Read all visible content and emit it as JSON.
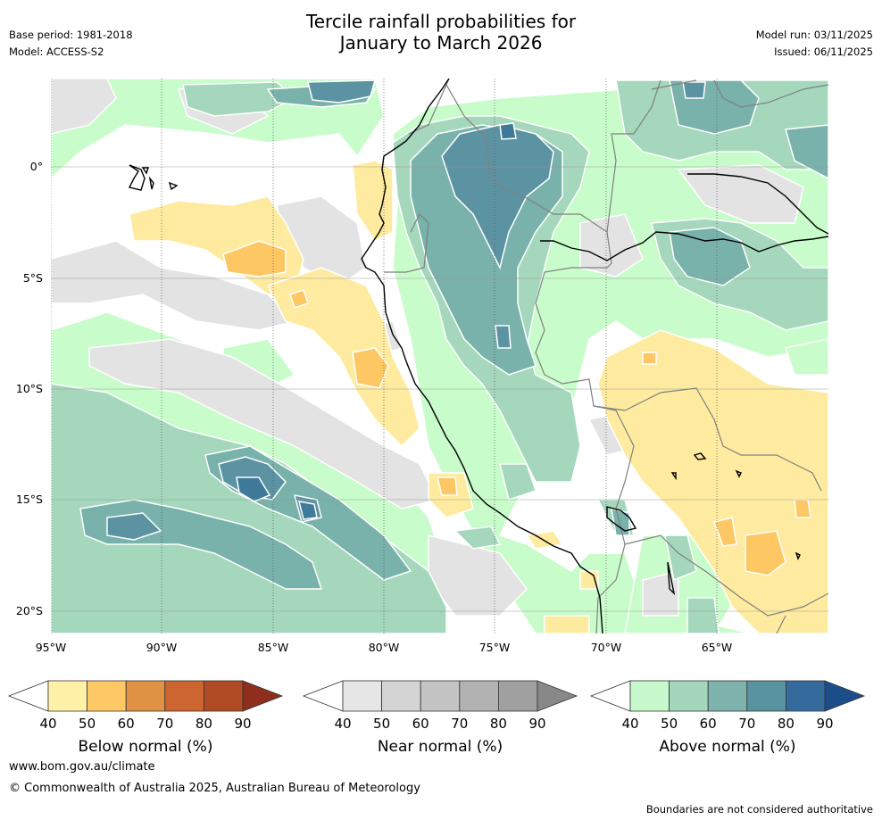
{
  "header": {
    "title_line1": "Tercile rainfall probabilities for",
    "title_line2": "January to March 2026",
    "base_period": "Base period: 1981-2018",
    "model": "Model: ACCESS-S2",
    "model_run": "Model run: 03/11/2025",
    "issued": "Issued: 06/11/2025"
  },
  "map": {
    "lat_labels": [
      "0°",
      "5°S",
      "10°S",
      "15°S",
      "20°S"
    ],
    "lon_labels": [
      "95°W",
      "90°W",
      "85°W",
      "80°W",
      "75°W",
      "70°W",
      "65°W"
    ],
    "colors": {
      "ocean": "#ffffff",
      "below_40": "#feeba0",
      "below_50": "#fdc864",
      "near_40": "#e3e3e3",
      "near_50": "#d3d3d3",
      "above_40": "#c8fcca",
      "above_50": "#a4d7bb",
      "above_60": "#79b1ab",
      "above_70": "#5c93a3",
      "above_80": "#3f7a9a",
      "coast": "#000000",
      "border": "#808080",
      "grid": "#999999"
    }
  },
  "legends": [
    {
      "label": "Below normal (%)",
      "ticks": [
        "40",
        "50",
        "60",
        "70",
        "80",
        "90"
      ],
      "colors": [
        "#fff2a8",
        "#fec965",
        "#e09244",
        "#cd6530",
        "#b04a25",
        "#8e2e1c"
      ]
    },
    {
      "label": "Near normal (%)",
      "ticks": [
        "40",
        "50",
        "60",
        "70",
        "80",
        "90"
      ],
      "colors": [
        "#e6e6e6",
        "#d4d4d4",
        "#c4c4c4",
        "#b2b2b2",
        "#a0a0a0",
        "#888888"
      ]
    },
    {
      "label": "Above normal (%)",
      "ticks": [
        "40",
        "50",
        "60",
        "70",
        "80",
        "90"
      ],
      "colors": [
        "#c7f9cc",
        "#a3d6ba",
        "#7eb3ae",
        "#5a93a0",
        "#346b9c",
        "#1b4d8a"
      ]
    }
  ],
  "footer": {
    "website": "www.bom.gov.au/climate",
    "copyright": "© Commonwealth of Australia 2025, Australian Bureau of Meteorology",
    "disclaimer": "Boundaries are not considered authoritative"
  }
}
